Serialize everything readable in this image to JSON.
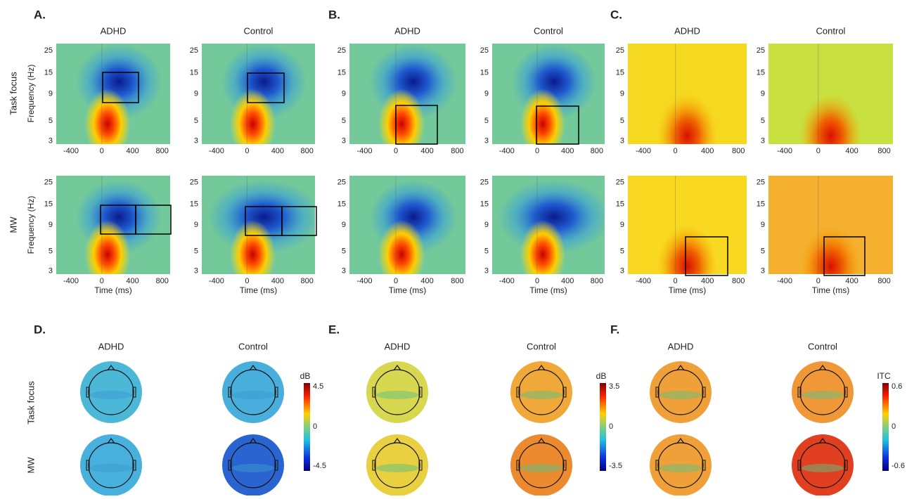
{
  "panels": [
    {
      "letter": "A."
    },
    {
      "letter": "B."
    },
    {
      "letter": "C."
    },
    {
      "letter": "D."
    },
    {
      "letter": "E."
    },
    {
      "letter": "F."
    }
  ],
  "columns": [
    "ADHD",
    "Control"
  ],
  "rows": [
    "Task focus",
    "MW"
  ],
  "ylabel": "Frequency (Hz)",
  "xlabel": "Time (ms)",
  "yticks": [
    "25",
    "15",
    "9",
    "5",
    "3"
  ],
  "xticks": [
    "-400",
    "0",
    "400",
    "800"
  ],
  "colorbars": [
    {
      "unit": "dB",
      "max": "4.5",
      "mid": "0",
      "min": "-4.5"
    },
    {
      "unit": "dB",
      "max": "3.5",
      "mid": "0",
      "min": "-3.5"
    },
    {
      "unit": "ITC",
      "max": "0.6",
      "mid": "0",
      "min": "-0.6"
    }
  ]
}
